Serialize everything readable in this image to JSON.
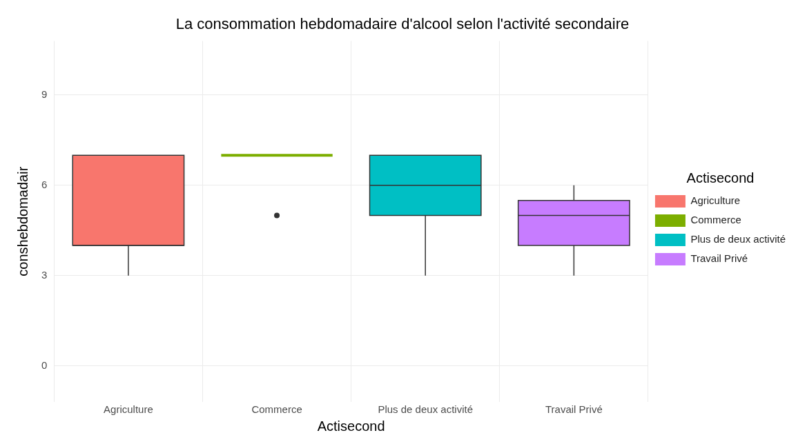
{
  "chart_data": {
    "type": "box",
    "title": "La consommation hebdomadaire d'alcool selon l'activité secondaire",
    "xlabel": "Actisecond",
    "ylabel": "conshebdomadair",
    "legend_title": "Actisecond",
    "categories": [
      "Agriculture",
      "Commerce",
      "Plus de deux activité",
      "Travail Privé"
    ],
    "series": [
      {
        "name": "Agriculture",
        "color": "#f8766d",
        "boxes": [
          {
            "low": 3,
            "q1": 4,
            "median": 4,
            "q3": 7,
            "high": 7
          },
          null,
          null,
          null
        ]
      },
      {
        "name": "Commerce",
        "color": "#7cae00",
        "boxes": [
          null,
          {
            "low": 7,
            "q1": 7,
            "median": 7,
            "q3": 7,
            "high": 7,
            "outliers": [
              5
            ]
          },
          null,
          null
        ]
      },
      {
        "name": "Plus de deux activité",
        "color": "#00bfc4",
        "boxes": [
          null,
          null,
          {
            "low": 3,
            "q1": 5,
            "median": 6,
            "q3": 7,
            "high": 7
          },
          null
        ]
      },
      {
        "name": "Travail Privé",
        "color": "#c77cff",
        "boxes": [
          null,
          null,
          null,
          {
            "low": 3,
            "q1": 4,
            "median": 5,
            "q3": 5.5,
            "high": 6
          }
        ]
      }
    ],
    "ylim": [
      -1.2,
      10.8
    ],
    "yticks": [
      0,
      3,
      6,
      9
    ],
    "grid": true,
    "legend": "right"
  }
}
